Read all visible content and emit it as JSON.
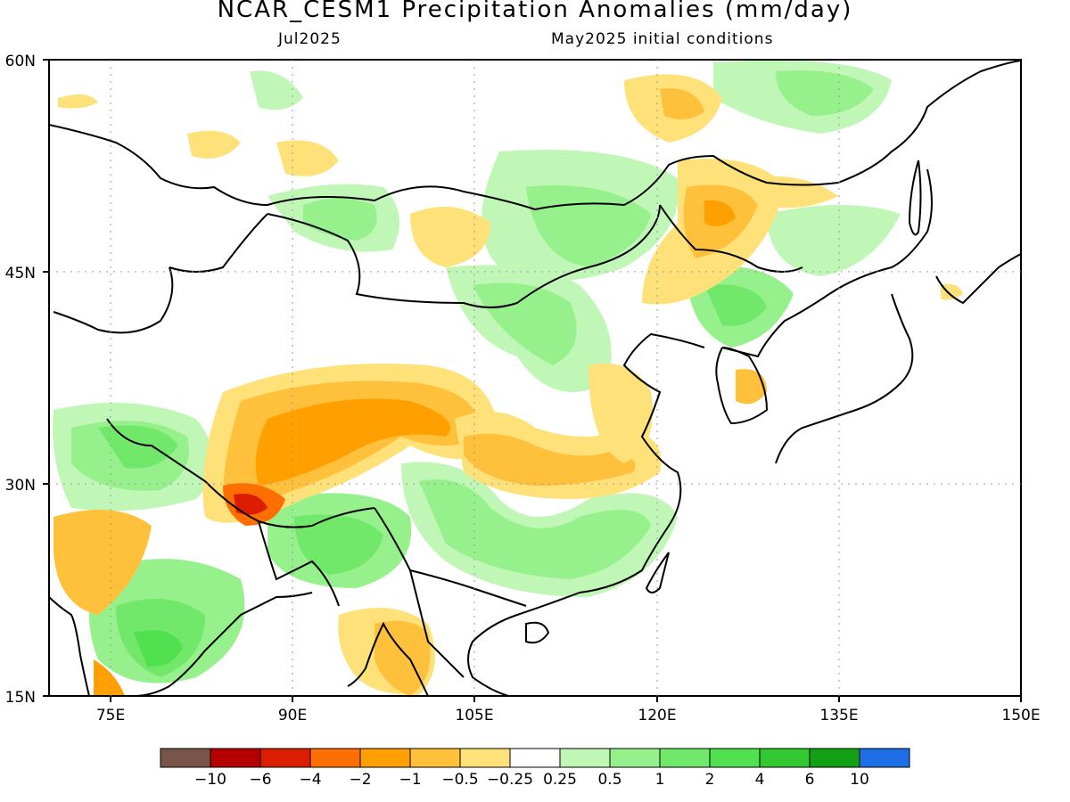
{
  "title": "NCAR_CESM1 Precipitation Anomalies (mm/day)",
  "valid_month": "Jul2025",
  "init_conditions": "May2025 initial conditions",
  "lat_labels": [
    "60N",
    "45N",
    "30N",
    "15N"
  ],
  "lon_labels": [
    "75E",
    "90E",
    "105E",
    "120E",
    "135E",
    "150E"
  ],
  "colorbar": {
    "colors": [
      "#785548",
      "#b40000",
      "#dc1e00",
      "#ff6e00",
      "#ffa000",
      "#ffc03c",
      "#ffe17a",
      "#ffffff",
      "#c0f7b6",
      "#96f08c",
      "#72e86b",
      "#50e050",
      "#32c832",
      "#14a014",
      "#1e6ee6"
    ],
    "labels": [
      "-10",
      "-6",
      "-4",
      "-2",
      "-1",
      "-0.5",
      "-0.25",
      "0.25",
      "0.5",
      "1",
      "2",
      "4",
      "6",
      "10"
    ]
  }
}
